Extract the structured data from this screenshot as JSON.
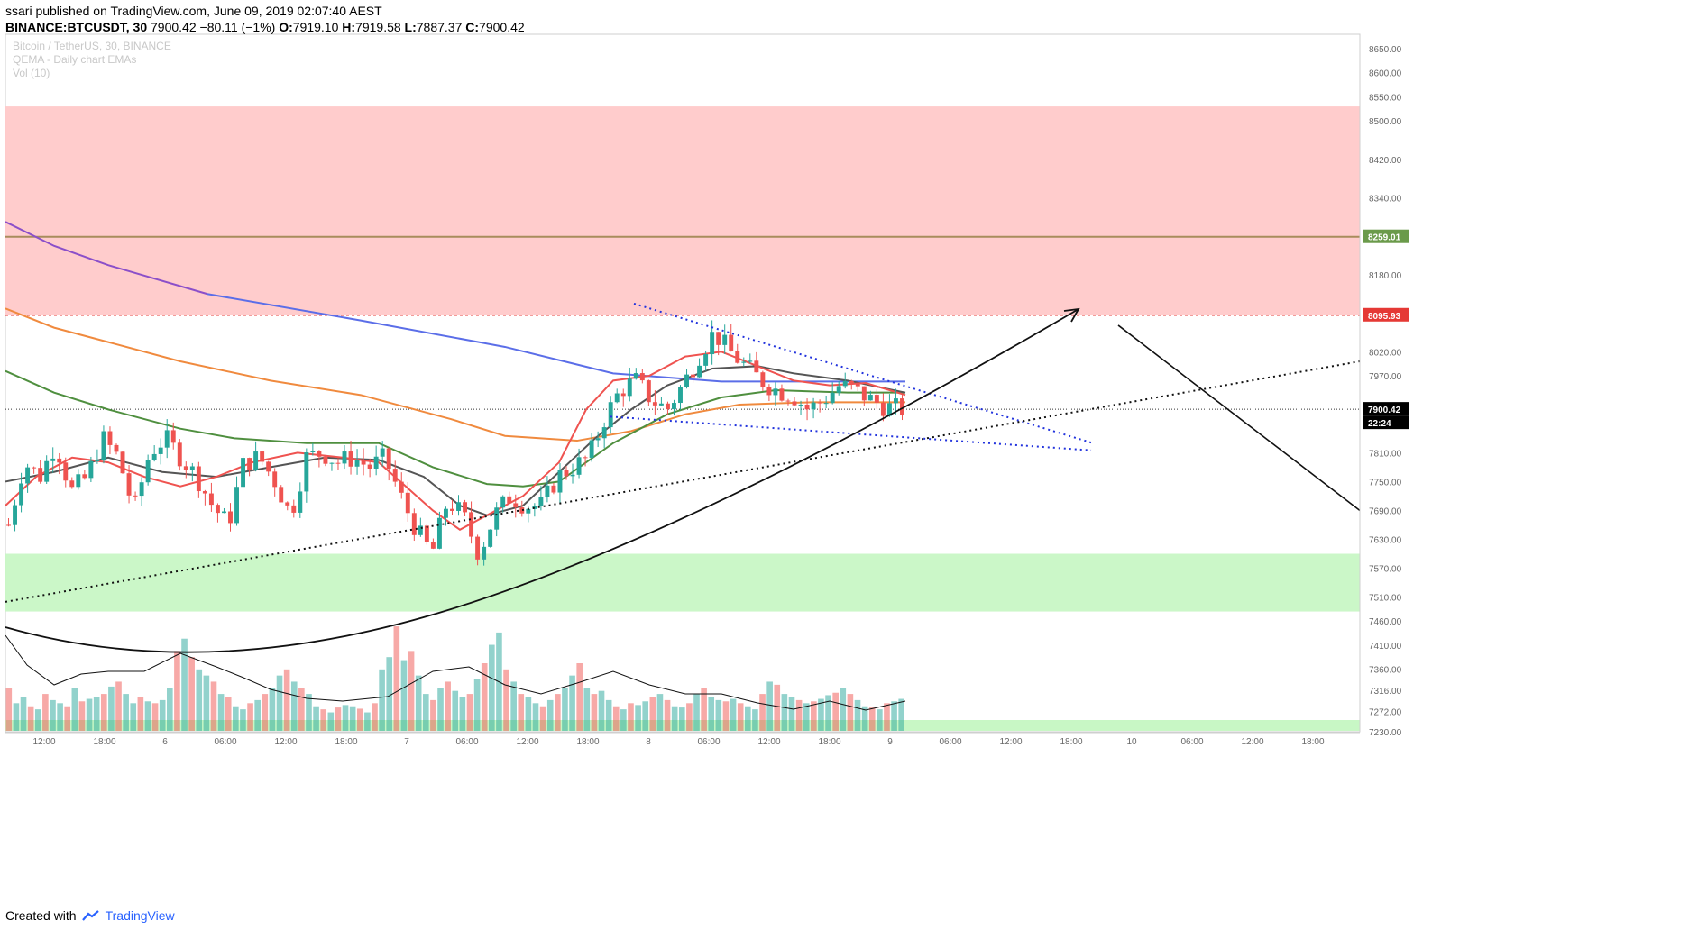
{
  "header": {
    "author": "ssari",
    "published_text": "published on TradingView.com, June 09, 2019 02:07:40 AEST",
    "symbol": "BINANCE:BTCUSDT, 30",
    "last": "7900.42",
    "change": "−80.11 (−1%)",
    "o_label": "O:",
    "o_value": "7919.10",
    "h_label": "H:",
    "h_value": "7919.58",
    "l_label": "L:",
    "l_value": "7887.37",
    "c_label": "C:",
    "c_value": "7900.42"
  },
  "legend": {
    "line1": "Bitcoin / TetherUS, 30, BINANCE",
    "line2": "QEMA - Daily chart EMAs",
    "line3": "Vol (10)"
  },
  "footer": {
    "created_with": "Created with",
    "brand": "TradingView"
  },
  "colors": {
    "up": "#26a69a",
    "down": "#ef5350",
    "resistance_zone": "#ffc9c9",
    "support_zone": "#c8f7c5",
    "ema_fast": "#ef5350",
    "ema_black": "#555555",
    "ema_green": "#4f8f3f",
    "ema_orange": "#f08a3e",
    "ema_blue": "#5b6ee8",
    "ema_purple": "#8b4fc9",
    "hline_8259": "#a88c5c",
    "hline_8095": "#e53935"
  },
  "chart_data": {
    "type": "candlestick",
    "ylim": [
      7230,
      8680
    ],
    "y_ticks": [
      "8650.00",
      "8600.00",
      "8550.00",
      "8500.00",
      "8420.00",
      "8340.00",
      "8260.00",
      "8180.00",
      "8095.93",
      "8020.00",
      "7970.00",
      "7900.42",
      "7810.00",
      "7750.00",
      "7690.00",
      "7630.00",
      "7570.00",
      "7510.00",
      "7460.00",
      "7410.00",
      "7360.00",
      "7316.00",
      "7272.00",
      "7230.00"
    ],
    "y_tick_values": [
      8650,
      8600,
      8550,
      8500,
      8420,
      8340,
      8260,
      8180,
      8095.93,
      8020,
      7970,
      7900.42,
      7810,
      7750,
      7690,
      7630,
      7570,
      7510,
      7460,
      7410,
      7360,
      7316,
      7272,
      7230
    ],
    "x_ticks": [
      "12:00",
      "18:00",
      "6",
      "06:00",
      "12:00",
      "18:00",
      "7",
      "06:00",
      "12:00",
      "18:00",
      "8",
      "06:00",
      "12:00",
      "18:00",
      "9",
      "06:00",
      "12:00",
      "18:00",
      "10",
      "06:00",
      "12:00",
      "18:00"
    ],
    "x_tick_hours": [
      12,
      18,
      24,
      30,
      36,
      42,
      48,
      54,
      60,
      66,
      72,
      78,
      84,
      90,
      96,
      102,
      108,
      114,
      120,
      126,
      132,
      138
    ],
    "price_labels": [
      {
        "text": "8259.01",
        "value": 8259.01,
        "color": "#6a9a4a"
      },
      {
        "text": "8095.93",
        "value": 8095.93,
        "color": "#e53935"
      },
      {
        "text": "7900.42",
        "value": 7900.42,
        "color": "#000000"
      },
      {
        "text": "22:24",
        "value": 7880,
        "color": "#000000"
      }
    ],
    "zones": [
      {
        "name": "resistance",
        "from": 8095.93,
        "to": 8530
      },
      {
        "name": "support",
        "from": 7480,
        "to": 7600
      }
    ],
    "candle_anchors": [
      [
        7660,
        7.5
      ],
      [
        7790,
        7.5
      ],
      [
        7760,
        7.5
      ],
      [
        7830,
        7.5
      ],
      [
        7730,
        7.5
      ],
      [
        7760,
        7.5
      ],
      [
        7840,
        7.5
      ],
      [
        7800,
        7.5
      ],
      [
        7690,
        7.5
      ],
      [
        7810,
        7.5
      ],
      [
        7840,
        7.5
      ],
      [
        7800,
        7.5
      ],
      [
        7760,
        7.5
      ],
      [
        7700,
        7.5
      ],
      [
        7660,
        7.5
      ],
      [
        7790,
        7.5
      ],
      [
        7800,
        7.5
      ],
      [
        7750,
        7.5
      ],
      [
        7680,
        7.5
      ],
      [
        7800,
        7.5
      ],
      [
        7810,
        7.5
      ],
      [
        7790,
        7.5
      ],
      [
        7800,
        7.5
      ],
      [
        7780,
        7.5
      ],
      [
        7800,
        7.5
      ],
      [
        7720,
        7.5
      ],
      [
        7650,
        7.5
      ],
      [
        7600,
        7.5
      ],
      [
        7710,
        7.5
      ],
      [
        7680,
        7.5
      ],
      [
        7600,
        7.5
      ],
      [
        7680,
        7.5
      ],
      [
        7720,
        7.5
      ],
      [
        7700,
        7.5
      ],
      [
        7700,
        7.5
      ],
      [
        7760,
        7.5
      ],
      [
        7780,
        7.5
      ],
      [
        7800,
        7.5
      ],
      [
        7880,
        7.5
      ],
      [
        7940,
        7.5
      ],
      [
        7960,
        7.5
      ],
      [
        7920,
        7.5
      ],
      [
        7900,
        7.5
      ],
      [
        7950,
        7.5
      ],
      [
        8010,
        7.5
      ],
      [
        8060,
        7.5
      ],
      [
        8020,
        7.5
      ],
      [
        7990,
        7.5
      ],
      [
        7960,
        7.5
      ],
      [
        7940,
        7.5
      ],
      [
        7930,
        7.5
      ],
      [
        7900,
        7.5
      ],
      [
        7920,
        7.5
      ],
      [
        7950,
        7.5
      ],
      [
        7940,
        7.5
      ],
      [
        7920,
        7.5
      ],
      [
        7905,
        7.5
      ],
      [
        7900,
        7.5
      ]
    ],
    "volume_max": 220,
    "volumes": [
      70,
      45,
      55,
      40,
      35,
      60,
      50,
      45,
      40,
      70,
      48,
      52,
      55,
      60,
      72,
      80,
      60,
      45,
      55,
      48,
      45,
      50,
      70,
      130,
      150,
      120,
      100,
      90,
      80,
      60,
      55,
      40,
      35,
      45,
      50,
      60,
      70,
      90,
      100,
      80,
      70,
      60,
      40,
      35,
      30,
      38,
      42,
      40,
      36,
      30,
      45,
      100,
      120,
      170,
      115,
      130,
      90,
      60,
      50,
      70,
      80,
      65,
      55,
      60,
      85,
      110,
      140,
      160,
      100,
      80,
      60,
      55,
      45,
      40,
      50,
      60,
      70,
      90,
      110,
      70,
      60,
      65,
      50,
      40,
      35,
      45,
      42,
      48,
      55,
      60,
      50,
      40,
      38,
      45,
      60,
      70,
      55,
      50,
      48,
      52,
      45,
      40,
      35,
      60,
      80,
      75,
      60,
      55,
      50,
      45,
      48,
      52,
      58,
      62,
      70,
      60,
      50,
      40,
      38,
      35,
      45,
      48,
      52
    ],
    "emas": [
      {
        "name": "ema_purple",
        "color": "#8b4fc9",
        "pts": [
          [
            6,
            8290
          ],
          [
            60,
            8240
          ],
          [
            120,
            8200
          ],
          [
            230,
            8140
          ]
        ]
      },
      {
        "name": "ema_blue",
        "color": "#5b6ee8",
        "pts": [
          [
            230,
            8140
          ],
          [
            400,
            8085
          ],
          [
            560,
            8030
          ],
          [
            680,
            7975
          ],
          [
            800,
            7958
          ],
          [
            1004,
            7958
          ]
        ]
      },
      {
        "name": "ema_orange",
        "color": "#f08a3e",
        "pts": [
          [
            6,
            8110
          ],
          [
            60,
            8070
          ],
          [
            120,
            8040
          ],
          [
            200,
            8000
          ],
          [
            300,
            7960
          ],
          [
            400,
            7930
          ],
          [
            500,
            7880
          ],
          [
            560,
            7845
          ],
          [
            640,
            7835
          ],
          [
            700,
            7855
          ],
          [
            760,
            7890
          ],
          [
            820,
            7910
          ],
          [
            900,
            7915
          ],
          [
            1004,
            7915
          ]
        ]
      },
      {
        "name": "ema_green",
        "color": "#4f8f3f",
        "pts": [
          [
            6,
            7980
          ],
          [
            60,
            7935
          ],
          [
            120,
            7900
          ],
          [
            200,
            7860
          ],
          [
            260,
            7840
          ],
          [
            340,
            7830
          ],
          [
            420,
            7830
          ],
          [
            480,
            7780
          ],
          [
            540,
            7745
          ],
          [
            580,
            7740
          ],
          [
            620,
            7750
          ],
          [
            680,
            7830
          ],
          [
            740,
            7890
          ],
          [
            800,
            7925
          ],
          [
            860,
            7940
          ],
          [
            940,
            7935
          ],
          [
            1004,
            7935
          ]
        ]
      },
      {
        "name": "ema_black",
        "color": "#555555",
        "pts": [
          [
            6,
            7750
          ],
          [
            60,
            7770
          ],
          [
            120,
            7800
          ],
          [
            180,
            7770
          ],
          [
            240,
            7760
          ],
          [
            300,
            7780
          ],
          [
            360,
            7800
          ],
          [
            420,
            7795
          ],
          [
            470,
            7760
          ],
          [
            510,
            7700
          ],
          [
            540,
            7680
          ],
          [
            580,
            7700
          ],
          [
            620,
            7770
          ],
          [
            660,
            7840
          ],
          [
            700,
            7900
          ],
          [
            740,
            7950
          ],
          [
            790,
            7985
          ],
          [
            840,
            7990
          ],
          [
            880,
            7975
          ],
          [
            940,
            7960
          ],
          [
            1004,
            7935
          ]
        ]
      },
      {
        "name": "ema_fast",
        "color": "#ef5350",
        "pts": [
          [
            6,
            7700
          ],
          [
            40,
            7760
          ],
          [
            80,
            7800
          ],
          [
            120,
            7790
          ],
          [
            160,
            7760
          ],
          [
            200,
            7740
          ],
          [
            240,
            7760
          ],
          [
            280,
            7790
          ],
          [
            330,
            7810
          ],
          [
            380,
            7800
          ],
          [
            420,
            7790
          ],
          [
            450,
            7740
          ],
          [
            480,
            7690
          ],
          [
            510,
            7650
          ],
          [
            540,
            7680
          ],
          [
            580,
            7720
          ],
          [
            620,
            7790
          ],
          [
            650,
            7900
          ],
          [
            680,
            7960
          ],
          [
            720,
            7970
          ],
          [
            760,
            8010
          ],
          [
            800,
            8020
          ],
          [
            840,
            7990
          ],
          [
            880,
            7960
          ],
          [
            920,
            7950
          ],
          [
            960,
            7955
          ],
          [
            1004,
            7930
          ]
        ]
      }
    ],
    "trendlines": [
      {
        "name": "down-channel-top",
        "style": "dotted-blue",
        "pts": [
          [
            703,
            8120
          ],
          [
            1212,
            7830
          ]
        ]
      },
      {
        "name": "down-channel-bottom",
        "style": "dotted-blue",
        "pts": [
          [
            677,
            7885
          ],
          [
            1210,
            7815
          ]
        ]
      },
      {
        "name": "rising-support",
        "style": "dotted-black",
        "pts": [
          [
            6,
            7500
          ],
          [
            1508,
            8000
          ]
        ]
      },
      {
        "name": "projection-down",
        "style": "solid-black",
        "pts": [
          [
            1240,
            8075
          ],
          [
            1508,
            7690
          ]
        ]
      }
    ],
    "vol_ma_pts": [
      [
        6,
        705
      ],
      [
        30,
        738
      ],
      [
        60,
        760
      ],
      [
        90,
        748
      ],
      [
        120,
        745
      ],
      [
        160,
        745
      ],
      [
        200,
        725
      ],
      [
        240,
        740
      ],
      [
        270,
        752
      ],
      [
        300,
        765
      ],
      [
        340,
        775
      ],
      [
        380,
        778
      ],
      [
        430,
        773
      ],
      [
        480,
        745
      ],
      [
        520,
        740
      ],
      [
        560,
        760
      ],
      [
        600,
        770
      ],
      [
        640,
        758
      ],
      [
        680,
        745
      ],
      [
        720,
        760
      ],
      [
        760,
        770
      ],
      [
        800,
        770
      ],
      [
        840,
        780
      ],
      [
        880,
        787
      ],
      [
        920,
        778
      ],
      [
        960,
        788
      ],
      [
        1004,
        778
      ]
    ]
  }
}
